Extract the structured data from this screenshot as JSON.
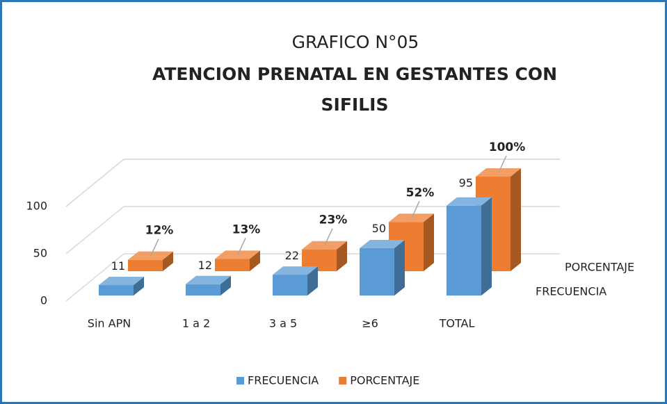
{
  "chart_data": {
    "type": "bar3d",
    "title": "GRAFICO N°05",
    "subtitle": "ATENCION PRENATAL EN GESTANTES CON SIFILIS",
    "categories": [
      "Sin APN",
      "1 a 2",
      "3 a 5",
      "≥6",
      "TOTAL"
    ],
    "series": [
      {
        "name": "FRECUENCIA",
        "color": "#5b9bd5",
        "values": [
          11,
          12,
          22,
          50,
          95
        ]
      },
      {
        "name": "PORCENTAJE",
        "color": "#ed7d31",
        "values": [
          12,
          13,
          23,
          52,
          100
        ],
        "value_labels": [
          "12%",
          "13%",
          "23%",
          "52%",
          "100%"
        ]
      }
    ],
    "ylim": [
      0,
      150
    ],
    "yticks": [
      0,
      50,
      100
    ],
    "grid": true,
    "legend": "bottom"
  }
}
